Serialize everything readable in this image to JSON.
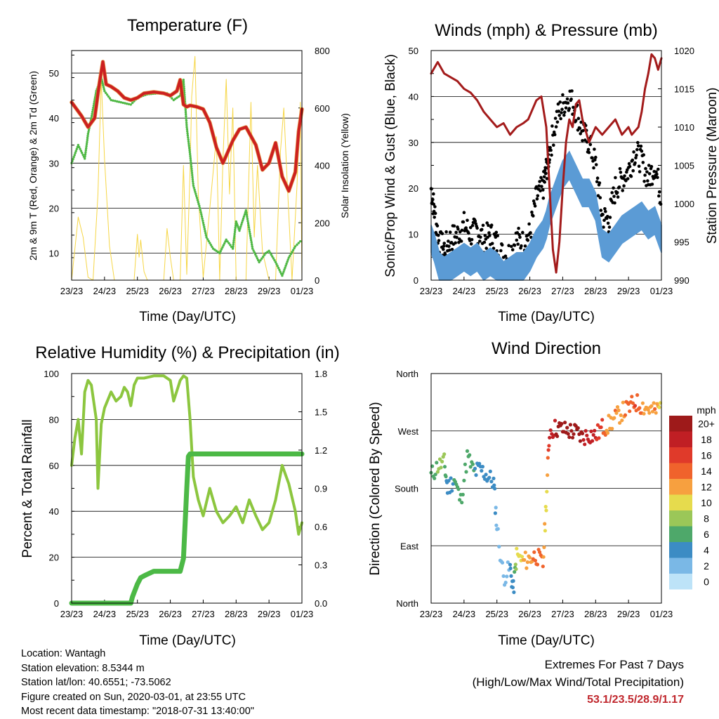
{
  "panels": {
    "temperature": {
      "title": "Temperature (F)",
      "ylabel_left": "2m & 9m T (Red, Orange) & 2m Td (Green)",
      "ylabel_right": "Solar Insolation (Yellow)",
      "xlabel": "Time (Day/UTC)"
    },
    "winds": {
      "title": "Winds (mph) & Pressure (mb)",
      "ylabel_left": "Sonic/Prop Wind & Gust (Blue, Black)",
      "ylabel_right": "Station Pressure (Maroon)",
      "xlabel": "Time (Day/UTC)"
    },
    "humidity": {
      "title": "Relative Humidity (%) & Precipitation (in)",
      "ylabel_left": "Percent & Total Rainfall",
      "xlabel": "Time (Day/UTC)"
    },
    "direction": {
      "title": "Wind Direction",
      "ylabel_left": "Direction (Colored By Speed)",
      "xlabel": "Time (Day/UTC)",
      "colorbar_title": "mph",
      "colorbar_labels": [
        "20+",
        "18",
        "16",
        "14",
        "12",
        "10",
        "8",
        "6",
        "4",
        "2",
        "0"
      ]
    }
  },
  "colors": {
    "temp_2m": "#cc2020",
    "temp_9m": "#e08a30",
    "dewpoint": "#4fb845",
    "solar": "#f6d646",
    "wind": "#5b9bd5",
    "gust": "#000000",
    "pressure": "#a31b1b",
    "rh": "#8cc63f",
    "precip": "#4cb946",
    "colorbar": [
      "#9e1a1a",
      "#c01f24",
      "#e03a2a",
      "#f0632c",
      "#f7a03f",
      "#e6db4d",
      "#9bc758",
      "#4ea86a",
      "#3c8cc4",
      "#7ab8e6",
      "#bde3f8"
    ]
  },
  "info": {
    "location": "Location: Wantagh",
    "elevation": "Station elevation: 8.5344 m",
    "latlon": "Station lat/lon: 40.6551; -73.5062",
    "created": "Figure created on Sun, 2020-03-01, at 23:55 UTC",
    "recent": "Most recent data timestamp: \"2018-07-31 13:40:00\""
  },
  "extremes": {
    "line1": "Extremes For Past 7 Days",
    "line2": "(High/Low/Max Wind/Total Precipitation)",
    "values": "53.1/23.5/28.9/1.17"
  },
  "chart_data": [
    {
      "type": "line",
      "title": "Temperature (F)",
      "xlabel": "Time (Day/UTC)",
      "ylabel": "2m & 9m T (Red, Orange) & 2m Td (Green)",
      "y2label": "Solar Insolation (Yellow)",
      "x_ticks": [
        "23/23",
        "24/23",
        "25/23",
        "26/23",
        "27/23",
        "28/23",
        "29/23",
        "01/23"
      ],
      "xlim": [
        0,
        7
      ],
      "ylim": [
        4,
        55
      ],
      "y_ticks": [
        10,
        20,
        30,
        40,
        50
      ],
      "y2lim": [
        0,
        800
      ],
      "y2_ticks": [
        0,
        200,
        400,
        600,
        800
      ],
      "grid": true,
      "series": [
        {
          "name": "2m T",
          "axis": "left",
          "x": [
            0.0,
            0.3,
            0.5,
            0.7,
            0.85,
            0.95,
            1.05,
            1.2,
            1.4,
            1.6,
            1.8,
            2.0,
            2.2,
            2.5,
            2.8,
            3.0,
            3.2,
            3.3,
            3.4,
            3.5,
            3.6,
            3.8,
            4.0,
            4.2,
            4.4,
            4.6,
            4.9,
            5.1,
            5.3,
            5.6,
            5.8,
            6.0,
            6.2,
            6.4,
            6.6,
            6.8,
            6.9,
            7.0
          ],
          "y": [
            43.5,
            40.5,
            38.0,
            40.0,
            48.0,
            52.5,
            47.5,
            47.0,
            46.0,
            44.5,
            44.0,
            44.5,
            45.5,
            45.8,
            45.5,
            45.0,
            46.0,
            48.5,
            43.0,
            42.5,
            42.8,
            42.5,
            42.0,
            39.0,
            33.5,
            30.0,
            35.0,
            37.5,
            38.0,
            34.0,
            28.5,
            30.0,
            34.5,
            27.0,
            23.8,
            28.0,
            37.0,
            42.0
          ]
        },
        {
          "name": "2m Td",
          "axis": "left",
          "x": [
            0.0,
            0.2,
            0.4,
            0.5,
            0.6,
            0.75,
            0.9,
            1.0,
            1.2,
            1.5,
            1.8,
            2.0,
            2.3,
            2.6,
            2.9,
            3.1,
            3.3,
            3.4,
            3.5,
            3.6,
            3.7,
            3.9,
            4.1,
            4.3,
            4.5,
            4.7,
            4.9,
            5.0,
            5.1,
            5.3,
            5.5,
            5.7,
            5.9,
            6.0,
            6.2,
            6.4,
            6.6,
            6.8,
            7.0
          ],
          "y": [
            30.0,
            34.0,
            31.0,
            36.5,
            40.0,
            46.0,
            49.0,
            46.0,
            44.0,
            43.5,
            43.0,
            44.5,
            45.3,
            45.5,
            45.5,
            44.0,
            45.0,
            48.5,
            38.0,
            32.0,
            25.0,
            20.0,
            13.5,
            11.0,
            10.0,
            13.0,
            11.0,
            17.0,
            15.0,
            19.5,
            11.0,
            8.0,
            10.0,
            10.5,
            8.0,
            5.0,
            9.0,
            11.5,
            13.0
          ]
        },
        {
          "name": "Solar Insolation",
          "axis": "right",
          "x": [
            0.0,
            0.2,
            0.35,
            0.5,
            0.65,
            0.8,
            0.9,
            1.0,
            1.15,
            1.3,
            1.9,
            2.0,
            2.05,
            2.1,
            2.2,
            2.3,
            2.8,
            2.9,
            3.0,
            3.1,
            3.3,
            3.4,
            3.5,
            3.6,
            3.65,
            3.75,
            3.85,
            4.0,
            4.2,
            4.4,
            4.5,
            4.6,
            4.7,
            4.8,
            4.9,
            5.0,
            5.3,
            5.45,
            5.55,
            5.65,
            5.8,
            6.0,
            6.2,
            6.35,
            6.45,
            6.55,
            6.7,
            6.85,
            6.95,
            7.0
          ],
          "y": [
            0,
            220,
            150,
            10,
            0,
            300,
            700,
            420,
            120,
            0,
            0,
            160,
            80,
            140,
            30,
            0,
            0,
            180,
            80,
            0,
            0,
            400,
            20,
            380,
            640,
            780,
            300,
            10,
            250,
            500,
            0,
            420,
            700,
            300,
            600,
            0,
            0,
            620,
            150,
            400,
            100,
            0,
            0,
            450,
            600,
            350,
            0,
            330,
            620,
            0
          ]
        }
      ]
    },
    {
      "type": "line",
      "title": "Winds (mph) & Pressure (mb)",
      "xlabel": "Time (Day/UTC)",
      "ylabel": "Sonic/Prop Wind & Gust (Blue, Black)",
      "y2label": "Station Pressure (Maroon)",
      "x_ticks": [
        "23/23",
        "24/23",
        "25/23",
        "26/23",
        "27/23",
        "28/23",
        "29/23",
        "01/23"
      ],
      "xlim": [
        0,
        7
      ],
      "ylim": [
        0,
        50
      ],
      "y_ticks": [
        0,
        10,
        20,
        30,
        40,
        50
      ],
      "y2lim": [
        990,
        1020
      ],
      "y2_ticks": [
        990,
        995,
        1000,
        1005,
        1010,
        1015,
        1020
      ],
      "grid": true,
      "series": [
        {
          "name": "Gust",
          "axis": "left",
          "x": [
            0.0,
            0.1,
            0.25,
            0.4,
            0.6,
            0.8,
            1.0,
            1.2,
            1.4,
            1.6,
            1.8,
            2.0,
            2.2,
            2.4,
            2.6,
            2.8,
            3.0,
            3.2,
            3.4,
            3.5,
            3.6,
            3.8,
            4.0,
            4.2,
            4.4,
            4.6,
            4.8,
            5.0,
            5.2,
            5.4,
            5.6,
            5.8,
            6.0,
            6.2,
            6.4,
            6.6,
            6.8,
            7.0
          ],
          "y": [
            20,
            15,
            8,
            7,
            9,
            10,
            12,
            10,
            11,
            9,
            10,
            8,
            5,
            6,
            9,
            8,
            10,
            18,
            20,
            24,
            28,
            35,
            38,
            40,
            37,
            32,
            30,
            25,
            14,
            13,
            20,
            22,
            24,
            28,
            26,
            22,
            25,
            18
          ]
        },
        {
          "name": "Wind",
          "axis": "left",
          "x": [
            0.0,
            0.1,
            0.25,
            0.4,
            0.6,
            0.8,
            1.0,
            1.2,
            1.4,
            1.6,
            1.8,
            2.0,
            2.2,
            2.4,
            2.6,
            2.8,
            3.0,
            3.2,
            3.4,
            3.5,
            3.6,
            3.8,
            4.0,
            4.2,
            4.4,
            4.6,
            4.8,
            5.0,
            5.2,
            5.4,
            5.6,
            5.8,
            6.0,
            6.2,
            6.4,
            6.6,
            6.8,
            7.0
          ],
          "y": [
            10,
            8,
            4,
            3,
            4,
            5,
            6,
            5,
            6,
            4,
            5,
            4,
            2,
            3,
            4,
            4,
            6,
            9,
            11,
            13,
            16,
            20,
            24,
            26,
            23,
            20,
            20,
            17,
            9,
            8,
            10,
            12,
            13,
            14,
            15,
            13,
            14,
            10
          ]
        },
        {
          "name": "Pressure",
          "axis": "right",
          "x": [
            0.0,
            0.2,
            0.4,
            0.6,
            0.8,
            1.0,
            1.2,
            1.4,
            1.6,
            1.8,
            2.0,
            2.2,
            2.4,
            2.6,
            2.8,
            2.95,
            3.05,
            3.2,
            3.35,
            3.5,
            3.6,
            3.7,
            3.8,
            3.9,
            4.0,
            4.1,
            4.2,
            4.3,
            4.4,
            4.5,
            4.6,
            4.8,
            5.0,
            5.2,
            5.4,
            5.6,
            5.8,
            6.0,
            6.1,
            6.2,
            6.3,
            6.4,
            6.5,
            6.6,
            6.7,
            6.8,
            6.9,
            7.0
          ],
          "y": [
            1017,
            1018.5,
            1017,
            1016.5,
            1016,
            1015,
            1014.5,
            1013.5,
            1012,
            1011,
            1010,
            1010.5,
            1009,
            1010,
            1010.5,
            1011,
            1012,
            1013.5,
            1014,
            1010,
            1002,
            994,
            991,
            995,
            1002,
            1008,
            1011,
            1010,
            1013,
            1013.5,
            1011,
            1008,
            1010,
            1009,
            1010,
            1011,
            1009,
            1010,
            1009,
            1009.5,
            1010,
            1012,
            1015,
            1017,
            1019.5,
            1019,
            1017.5,
            1019
          ]
        }
      ]
    },
    {
      "type": "line",
      "title": "Relative Humidity (%) & Precipitation (in)",
      "xlabel": "Time (Day/UTC)",
      "ylabel": "Percent & Total Rainfall",
      "x_ticks": [
        "23/23",
        "24/23",
        "25/23",
        "26/23",
        "27/23",
        "28/23",
        "29/23",
        "01/23"
      ],
      "xlim": [
        0,
        7
      ],
      "ylim": [
        0,
        100
      ],
      "y_ticks": [
        0,
        20,
        40,
        60,
        80,
        100
      ],
      "y2lim": [
        0,
        1.8
      ],
      "y2_ticks": [
        0.0,
        0.3,
        0.6,
        0.9,
        1.2,
        1.5,
        1.8
      ],
      "grid": true,
      "series": [
        {
          "name": "Relative Humidity",
          "axis": "left",
          "x": [
            0.0,
            0.1,
            0.2,
            0.3,
            0.4,
            0.5,
            0.6,
            0.75,
            0.8,
            0.9,
            1.0,
            1.2,
            1.35,
            1.5,
            1.6,
            1.7,
            1.8,
            1.9,
            2.0,
            2.2,
            2.5,
            2.8,
            3.0,
            3.1,
            3.3,
            3.4,
            3.5,
            3.6,
            3.7,
            3.85,
            4.0,
            4.2,
            4.4,
            4.6,
            4.8,
            5.0,
            5.2,
            5.4,
            5.6,
            5.8,
            6.0,
            6.2,
            6.4,
            6.6,
            6.8,
            6.9,
            7.0
          ],
          "y": [
            60,
            72,
            80,
            65,
            92,
            97,
            95,
            80,
            50,
            78,
            85,
            92,
            88,
            90,
            94,
            92,
            86,
            95,
            98,
            98,
            99,
            99,
            97,
            88,
            97,
            99,
            98,
            80,
            55,
            45,
            38,
            50,
            40,
            35,
            38,
            42,
            35,
            45,
            38,
            32,
            35,
            45,
            60,
            52,
            40,
            30,
            35
          ]
        },
        {
          "name": "Total Rainfall",
          "axis": "right",
          "x": [
            0.0,
            1.8,
            1.85,
            2.0,
            2.1,
            2.25,
            2.5,
            3.0,
            3.3,
            3.4,
            3.5,
            3.55,
            3.6,
            5.0,
            7.0
          ],
          "y": [
            0.0,
            0.0,
            0.05,
            0.15,
            0.2,
            0.22,
            0.25,
            0.25,
            0.25,
            0.35,
            0.9,
            1.15,
            1.17,
            1.17,
            1.17
          ]
        }
      ]
    },
    {
      "type": "scatter",
      "title": "Wind Direction",
      "xlabel": "Time (Day/UTC)",
      "ylabel": "Direction (Colored By Speed)",
      "x_ticks": [
        "23/23",
        "24/23",
        "25/23",
        "26/23",
        "27/23",
        "28/23",
        "29/23",
        "01/23"
      ],
      "xlim": [
        0,
        7
      ],
      "ylim": [
        0,
        360
      ],
      "y_ticks": [
        "North",
        "East",
        "South",
        "West",
        "North"
      ],
      "grid": true,
      "colorbar": {
        "title": "mph",
        "labels": [
          "20+",
          "18",
          "16",
          "14",
          "12",
          "10",
          "8",
          "6",
          "4",
          "2",
          "0"
        ]
      },
      "series": [
        {
          "name": "Direction",
          "x": [
            0.0,
            0.2,
            0.4,
            0.5,
            0.7,
            0.9,
            1.1,
            1.3,
            1.5,
            1.7,
            1.9,
            2.0,
            2.2,
            2.4,
            2.5,
            2.6,
            2.8,
            3.0,
            3.2,
            3.4,
            3.5,
            3.6,
            3.8,
            4.0,
            4.2,
            4.4,
            4.6,
            4.8,
            5.0,
            5.2,
            5.4,
            5.6,
            5.8,
            6.0,
            6.2,
            6.4,
            6.6,
            6.8,
            7.0
          ],
          "y": [
            200,
            215,
            220,
            180,
            195,
            160,
            230,
            205,
            210,
            200,
            190,
            120,
            40,
            55,
            20,
            75,
            65,
            70,
            75,
            60,
            160,
            270,
            275,
            272,
            270,
            268,
            260,
            265,
            262,
            275,
            280,
            290,
            300,
            305,
            315,
            310,
            305,
            300,
            310
          ]
        },
        {
          "name": "Speed",
          "values": [
            6,
            8,
            8,
            4,
            6,
            6,
            7,
            6,
            5,
            4,
            5,
            3,
            3,
            4,
            4,
            10,
            12,
            13,
            15,
            14,
            10,
            19,
            20,
            20,
            20,
            20,
            20,
            19,
            18,
            16,
            12,
            14,
            13,
            15,
            16,
            14,
            13,
            14,
            10
          ]
        }
      ]
    }
  ]
}
